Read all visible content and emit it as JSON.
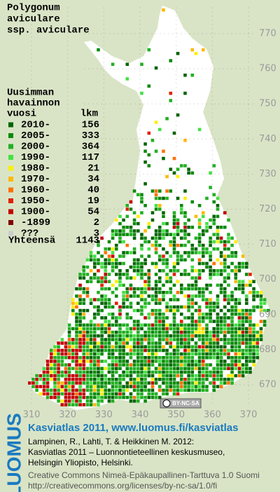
{
  "title": [
    "Polygonum",
    "aviculare",
    "ssp. aviculare"
  ],
  "legend": {
    "header": [
      "Uusimman",
      "havainnon"
    ],
    "col_year": "vuosi",
    "col_count": "lkm",
    "entries": [
      {
        "label": "2010-",
        "count": 156,
        "color": "#006400"
      },
      {
        "label": "2005-",
        "count": 333,
        "color": "#0a8a0a"
      },
      {
        "label": "2000-",
        "count": 364,
        "color": "#22b022"
      },
      {
        "label": "1990-",
        "count": 117,
        "color": "#44e044"
      },
      {
        "label": "1980-",
        "count": 21,
        "color": "#ffee00"
      },
      {
        "label": "1970-",
        "count": 34,
        "color": "#ffb800"
      },
      {
        "label": "1960-",
        "count": 40,
        "color": "#ff7000"
      },
      {
        "label": "1950-",
        "count": 19,
        "color": "#e02000"
      },
      {
        "label": "1900-",
        "count": 54,
        "color": "#c00000"
      },
      {
        "label": "-1899",
        "count": 2,
        "color": "#800000"
      },
      {
        "label": "???",
        "count": 3,
        "color": "#cccccc"
      }
    ],
    "total_label": "Yhteensä",
    "total": 1143
  },
  "map": {
    "yticks": [
      770,
      760,
      750,
      740,
      730,
      720,
      710,
      700,
      690,
      680,
      670
    ],
    "xticks": [
      310,
      320,
      330,
      340,
      350,
      360,
      370
    ],
    "license_badge": "BY-NC-SA"
  },
  "footer": {
    "logo": "LUOMUS",
    "heading": "Kasviatlas 2011, www.luomus.fi/kasviatlas",
    "citation": [
      "Lampinen, R., Lahti, T. & Heikkinen M. 2012:",
      "Kasviatlas 2011 – Luonnontieteellinen keskusmuseo,",
      "Helsingin Yliopisto, Helsinki."
    ],
    "license": [
      "Creative Commons Nimeä-Epäkaupallinen-Tarttuva 1.0 Suomi",
      "http://creativecommons.org/licenses/by-nc-sa/1.0/fi"
    ]
  }
}
